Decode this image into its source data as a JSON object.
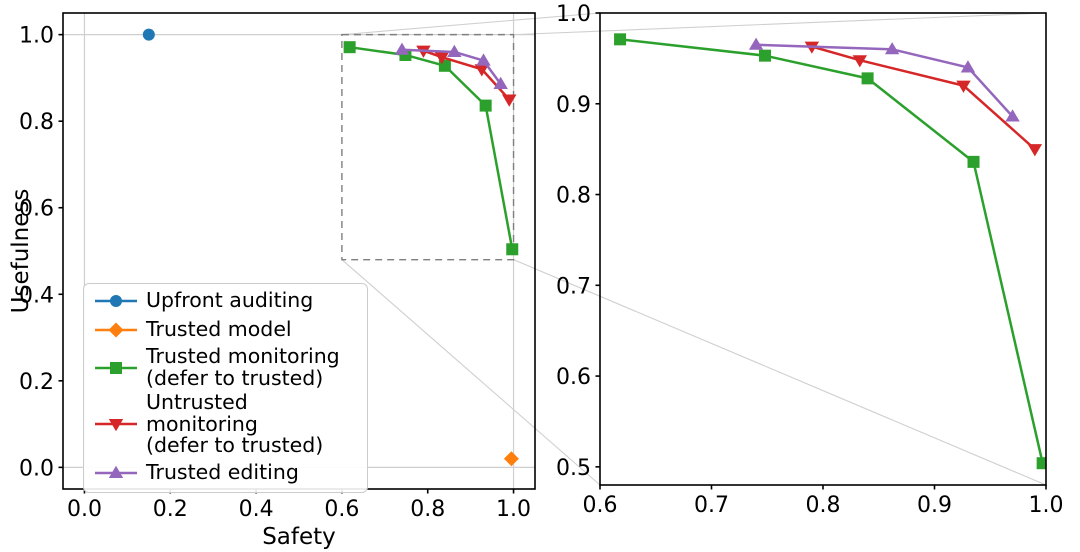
{
  "chart_data": {
    "type": "line",
    "title": "",
    "panels": [
      {
        "id": "main",
        "xlabel": "Safety",
        "ylabel": "Usefulness",
        "xlim": [
          -0.05,
          1.05
        ],
        "ylim": [
          -0.05,
          1.05
        ],
        "xticks": [
          0.0,
          0.2,
          0.4,
          0.6,
          0.8,
          1.0
        ],
        "yticks": [
          0.0,
          0.2,
          0.4,
          0.6,
          0.8,
          1.0
        ],
        "grid": false,
        "reference_lines": {
          "x": [
            0.0,
            1.0
          ],
          "y": [
            0.0,
            1.0
          ]
        },
        "zoom_rect": {
          "x0": 0.6,
          "y0": 0.48,
          "x1": 1.0,
          "y1": 1.0
        },
        "series_shown": [
          "Upfront auditing",
          "Trusted model",
          "Trusted monitoring (defer to trusted)",
          "Untrusted monitoring (defer to trusted)",
          "Trusted editing"
        ]
      },
      {
        "id": "zoom",
        "xlabel": "",
        "ylabel": "",
        "xlim": [
          0.6,
          1.0
        ],
        "ylim": [
          0.48,
          1.0
        ],
        "xticks": [
          0.6,
          0.7,
          0.8,
          0.9,
          1.0
        ],
        "yticks": [
          0.5,
          0.6,
          0.7,
          0.8,
          0.9,
          1.0
        ],
        "grid": false,
        "reference_lines": {
          "x": [],
          "y": []
        },
        "series_shown": [
          "Trusted monitoring (defer to trusted)",
          "Untrusted monitoring (defer to trusted)",
          "Trusted editing"
        ]
      }
    ],
    "series": [
      {
        "name": "Upfront auditing",
        "legend_label": [
          "Upfront auditing"
        ],
        "color": "#1f77b4",
        "marker": "circle",
        "points": [
          [
            0.15,
            1.0
          ]
        ]
      },
      {
        "name": "Trusted model",
        "legend_label": [
          "Trusted model"
        ],
        "color": "#ff7f0e",
        "marker": "diamond",
        "points": [
          [
            0.995,
            0.02
          ]
        ]
      },
      {
        "name": "Trusted monitoring (defer to trusted)",
        "legend_label": [
          "Trusted monitoring",
          "(defer to trusted)"
        ],
        "color": "#2ca02c",
        "marker": "square",
        "points": [
          [
            0.618,
            0.971
          ],
          [
            0.748,
            0.953
          ],
          [
            0.84,
            0.928
          ],
          [
            0.935,
            0.836
          ],
          [
            0.997,
            0.504
          ]
        ]
      },
      {
        "name": "Untrusted monitoring (defer to trusted)",
        "legend_label": [
          "Untrusted monitoring",
          "(defer to trusted)"
        ],
        "color": "#d62728",
        "marker": "triangle-down",
        "points": [
          [
            0.79,
            0.963
          ],
          [
            0.833,
            0.948
          ],
          [
            0.926,
            0.92
          ],
          [
            0.99,
            0.85
          ]
        ]
      },
      {
        "name": "Trusted editing",
        "legend_label": [
          "Trusted editing"
        ],
        "color": "#9467bd",
        "marker": "triangle-up",
        "points": [
          [
            0.74,
            0.965
          ],
          [
            0.862,
            0.96
          ],
          [
            0.93,
            0.94
          ],
          [
            0.97,
            0.886
          ]
        ]
      }
    ],
    "legend": {
      "location": "lower left"
    },
    "styles": {
      "background": "#ffffff",
      "spine_color": "#000000",
      "tick_color": "#000000",
      "refline_color": "#cfcfcf",
      "connector_color": "#cfcfcf",
      "zoom_rect_color": "#7f7f7f",
      "line_width": 2.5
    }
  }
}
